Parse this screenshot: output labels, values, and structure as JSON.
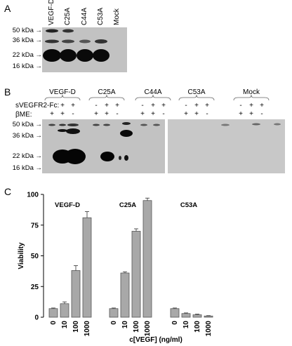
{
  "panelA": {
    "letter": "A",
    "lanes": [
      "VEGF-D",
      "C25A",
      "C44A",
      "C53A",
      "Mock"
    ],
    "markers": [
      "50 kDa",
      "36 kDa",
      "22 kDa",
      "16 kDa"
    ]
  },
  "panelB": {
    "letter": "B",
    "groups": [
      "VEGF-D",
      "C25A",
      "C44A",
      "C53A",
      "Mock"
    ],
    "row1_label": "sVEGFR2-Fc:",
    "row2_label": "βME:",
    "row1_signs": [
      "-",
      "+",
      "+"
    ],
    "row2_signs": [
      "+",
      "+",
      "-"
    ],
    "markers": [
      "50 kDa",
      "36 kDa",
      "22 kDa",
      "16 kDa"
    ]
  },
  "panelC": {
    "letter": "C",
    "chart_data": {
      "type": "bar",
      "ylabel": "Viability",
      "xlabel": "c[VEGF] (ng/ml)",
      "ylim": [
        0,
        100
      ],
      "yticks": [
        0,
        25,
        50,
        75,
        100
      ],
      "groups": [
        {
          "name": "VEGF-D",
          "categories": [
            "0",
            "10",
            "100",
            "1000"
          ],
          "values": [
            7,
            11,
            38,
            81
          ],
          "errors": [
            0.5,
            1.5,
            4,
            5
          ]
        },
        {
          "name": "C25A",
          "categories": [
            "0",
            "10",
            "100",
            "1000"
          ],
          "values": [
            7,
            36,
            70,
            95
          ],
          "errors": [
            0.5,
            1,
            2,
            2
          ]
        },
        {
          "name": "C53A",
          "categories": [
            "0",
            "10",
            "100",
            "1000"
          ],
          "values": [
            7,
            3,
            2,
            1
          ],
          "errors": [
            0.5,
            0.5,
            0.5,
            0.3
          ]
        }
      ],
      "bar_color": "#a8a8a8"
    }
  }
}
